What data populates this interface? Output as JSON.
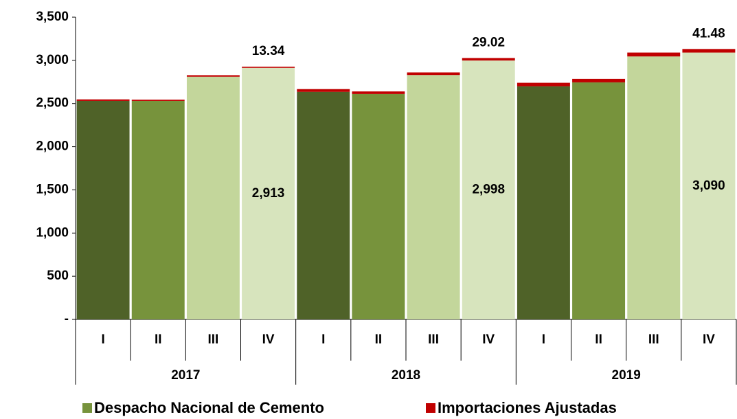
{
  "chart_data": {
    "type": "stacked_bar",
    "categories": [
      "I",
      "II",
      "III",
      "IV",
      "I",
      "II",
      "III",
      "IV",
      "I",
      "II",
      "III",
      "IV"
    ],
    "group_labels": [
      "2017",
      "2018",
      "2019"
    ],
    "series": [
      {
        "name": "Despacho Nacional de Cemento",
        "color": "#77933c",
        "bar_colors": [
          "#4f6228",
          "#77933c",
          "#c3d69b",
          "#d7e4bd",
          "#4f6228",
          "#77933c",
          "#c3d69b",
          "#d7e4bd",
          "#4f6228",
          "#77933c",
          "#c3d69b",
          "#d7e4bd"
        ],
        "values": [
          2530,
          2530,
          2810,
          2913,
          2635,
          2610,
          2830,
          2998,
          2700,
          2745,
          3045,
          3090
        ],
        "value_labels": [
          null,
          null,
          null,
          "2,913",
          null,
          null,
          null,
          "2,998",
          null,
          null,
          null,
          "3,090"
        ]
      },
      {
        "name": "Importaciones Ajustadas",
        "color": "#c00000",
        "values": [
          18,
          15,
          18,
          13.34,
          32,
          30,
          30,
          29.02,
          40,
          40,
          45,
          41.48
        ],
        "value_labels": [
          null,
          null,
          null,
          "13.34",
          null,
          null,
          null,
          "29.02",
          null,
          null,
          null,
          "41.48"
        ]
      }
    ],
    "ylim": [
      0,
      3500
    ],
    "yticks": [
      {
        "value": 0,
        "label": "-"
      },
      500,
      {
        "value": 1000,
        "label": "1,000"
      },
      {
        "value": 1500,
        "label": "1,500"
      },
      {
        "value": 2000,
        "label": "2,000"
      },
      {
        "value": 2500,
        "label": "2,500"
      },
      {
        "value": 3000,
        "label": "3,000"
      },
      {
        "value": 3500,
        "label": "3,500"
      }
    ],
    "legend": "bottom"
  }
}
